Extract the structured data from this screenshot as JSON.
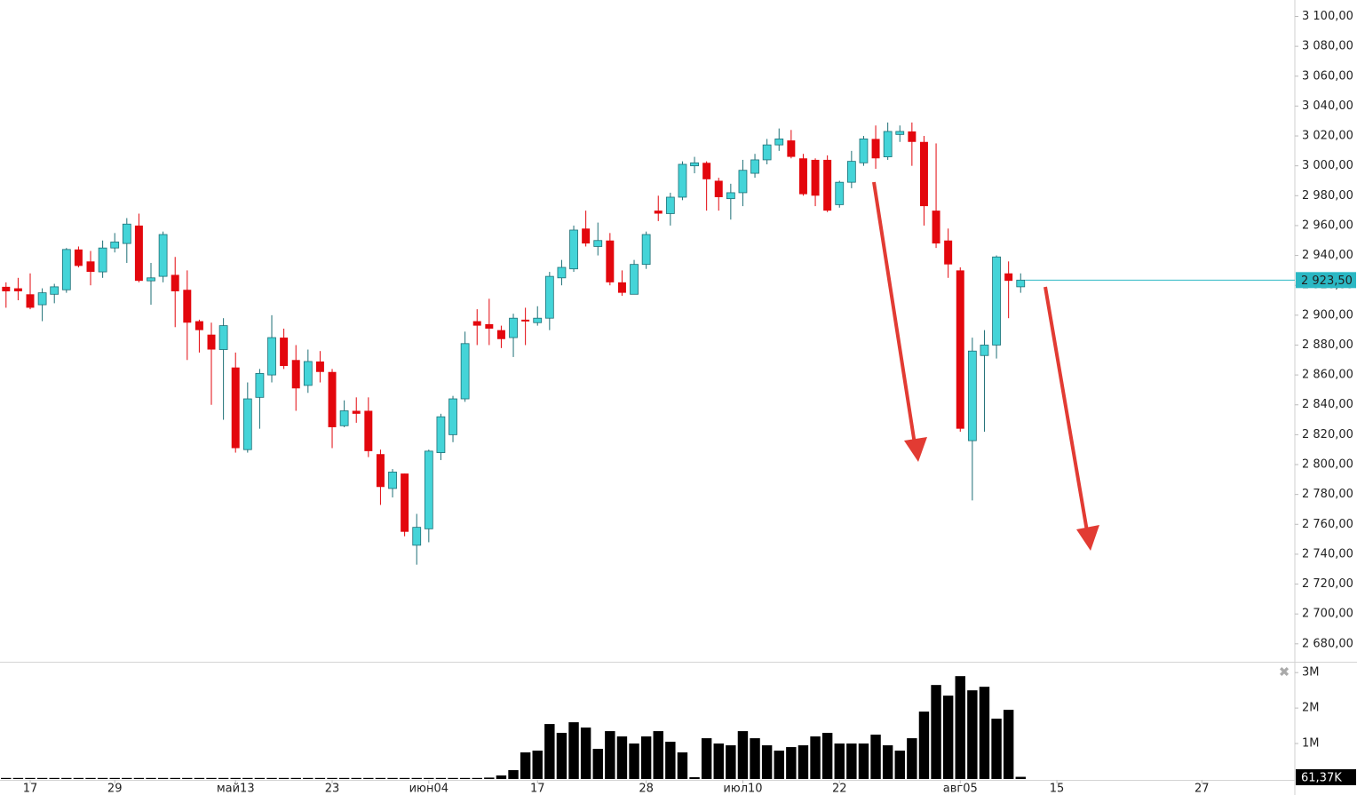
{
  "chart_data": [
    {
      "type": "candlestick",
      "up_color": "#44d4d8",
      "up_edge": "#1d6f76",
      "down_color": "#e3070d",
      "open": [
        2919,
        2918,
        2914,
        2907,
        2914,
        2917,
        2944,
        2936,
        2929,
        2945,
        2948,
        2960,
        2923,
        2926,
        2927,
        2917,
        2896,
        2887,
        2877,
        2865,
        2810,
        2845,
        2860,
        2885,
        2870,
        2853,
        2869,
        2862,
        2826,
        2836,
        2836,
        2807,
        2784,
        2794,
        2746,
        2757,
        2808,
        2820,
        2844,
        2896,
        2894,
        2890,
        2885,
        2897,
        2895,
        2898,
        2925,
        2931,
        2958,
        2946,
        2950,
        2922,
        2914,
        2934,
        2970,
        2968,
        2979,
        3000,
        3002,
        2990,
        2978,
        2982,
        2995,
        3004,
        3014,
        3017,
        3005,
        3004,
        3004,
        2974,
        2989,
        3002,
        3018,
        3006,
        3021,
        3023,
        3016,
        2970,
        2950,
        2930,
        2816,
        2873,
        2880,
        2928,
        2919
      ],
      "high": [
        2922,
        2925,
        2928,
        2918,
        2921,
        2945,
        2946,
        2943,
        2950,
        2955,
        2965,
        2968,
        2935,
        2956,
        2939,
        2930,
        2897,
        2895,
        2898,
        2875,
        2855,
        2864,
        2900,
        2891,
        2880,
        2877,
        2876,
        2864,
        2843,
        2845,
        2845,
        2810,
        2797,
        2794,
        2767,
        2810,
        2834,
        2846,
        2889,
        2904,
        2911,
        2893,
        2901,
        2905,
        2906,
        2929,
        2937,
        2960,
        2970,
        2962,
        2955,
        2930,
        2937,
        2956,
        2980,
        2982,
        3003,
        3006,
        3003,
        2992,
        2988,
        3004,
        3008,
        3018,
        3025,
        3024,
        3008,
        3005,
        3007,
        2990,
        3010,
        3020,
        3027,
        3029,
        3027,
        3029,
        3020,
        3015,
        2958,
        2932,
        2885,
        2890,
        2940,
        2936,
        2928
      ],
      "low": [
        2905,
        2910,
        2904,
        2896,
        2908,
        2915,
        2932,
        2920,
        2925,
        2942,
        2935,
        2922,
        2907,
        2922,
        2892,
        2870,
        2875,
        2840,
        2830,
        2808,
        2808,
        2824,
        2855,
        2864,
        2836,
        2848,
        2855,
        2811,
        2825,
        2828,
        2805,
        2773,
        2778,
        2752,
        2733,
        2748,
        2803,
        2815,
        2842,
        2880,
        2880,
        2878,
        2872,
        2880,
        2893,
        2890,
        2920,
        2929,
        2946,
        2940,
        2920,
        2913,
        2914,
        2931,
        2963,
        2960,
        2977,
        2995,
        2970,
        2970,
        2964,
        2973,
        2992,
        3001,
        3010,
        3005,
        2980,
        2973,
        2969,
        2972,
        2985,
        3000,
        2998,
        3004,
        3016,
        3000,
        2960,
        2945,
        2925,
        2822,
        2776,
        2822,
        2871,
        2898,
        2915
      ],
      "close": [
        2916,
        2916,
        2905,
        2915,
        2919,
        2944,
        2933,
        2929,
        2945,
        2949,
        2961,
        2923,
        2925,
        2954,
        2916,
        2895,
        2890,
        2877,
        2893,
        2811,
        2844,
        2861,
        2885,
        2866,
        2851,
        2869,
        2862,
        2825,
        2836,
        2834,
        2809,
        2785,
        2795,
        2755,
        2758,
        2809,
        2832,
        2844,
        2881,
        2893,
        2891,
        2884,
        2898,
        2896,
        2898,
        2926,
        2932,
        2957,
        2948,
        2950,
        2922,
        2915,
        2934,
        2954,
        2968,
        2979,
        3001,
        3002,
        2991,
        2979,
        2982,
        2997,
        3004,
        3014,
        3018,
        3006,
        2981,
        2980,
        2970,
        2989,
        3003,
        3018,
        3005,
        3023,
        3023,
        3016,
        2973,
        2948,
        2934,
        2824,
        2876,
        2880,
        2939,
        2923,
        2923.5
      ],
      "xlim": [
        -0.5,
        106.7
      ],
      "xticks": [
        {
          "value": 2,
          "label": "17"
        },
        {
          "value": 9,
          "label": "29"
        },
        {
          "value": 19,
          "label": "май13"
        },
        {
          "value": 27,
          "label": "23"
        },
        {
          "value": 35,
          "label": "июн04"
        },
        {
          "value": 44,
          "label": "17"
        },
        {
          "value": 53,
          "label": "28"
        },
        {
          "value": 61,
          "label": "июл10"
        },
        {
          "value": 69,
          "label": "22"
        },
        {
          "value": 79,
          "label": "авг05"
        },
        {
          "value": 87,
          "label": "15"
        },
        {
          "value": 99,
          "label": "27"
        }
      ],
      "ylim": [
        2668,
        3111
      ],
      "yticks": [
        {
          "value": 3100,
          "label": "3 100,00"
        },
        {
          "value": 3080,
          "label": "3 080,00"
        },
        {
          "value": 3060,
          "label": "3 060,00"
        },
        {
          "value": 3040,
          "label": "3 040,00"
        },
        {
          "value": 3020,
          "label": "3 020,00"
        },
        {
          "value": 3000,
          "label": "3 000,00"
        },
        {
          "value": 2980,
          "label": "2 980,00"
        },
        {
          "value": 2960,
          "label": "2 960,00"
        },
        {
          "value": 2940,
          "label": "2 940,00"
        },
        {
          "value": 2920,
          "label": "2 920,00"
        },
        {
          "value": 2900,
          "label": "2 900,00"
        },
        {
          "value": 2880,
          "label": "2 880,00"
        },
        {
          "value": 2860,
          "label": "2 860,00"
        },
        {
          "value": 2840,
          "label": "2 840,00"
        },
        {
          "value": 2820,
          "label": "2 820,00"
        },
        {
          "value": 2800,
          "label": "2 800,00"
        },
        {
          "value": 2780,
          "label": "2 780,00"
        },
        {
          "value": 2760,
          "label": "2 760,00"
        },
        {
          "value": 2740,
          "label": "2 740,00"
        },
        {
          "value": 2720,
          "label": "2 720,00"
        },
        {
          "value": 2700,
          "label": "2 700,00"
        },
        {
          "value": 2680,
          "label": "2 680,00"
        }
      ],
      "last_price": {
        "value": 2923.5,
        "label": "2 923,50"
      },
      "last_color": "#2bb8c4"
    },
    {
      "type": "bar",
      "color": "#000000",
      "values": [
        0.03,
        0.03,
        0.03,
        0.03,
        0.03,
        0.03,
        0.03,
        0.03,
        0.03,
        0.03,
        0.03,
        0.03,
        0.03,
        0.03,
        0.03,
        0.03,
        0.03,
        0.03,
        0.03,
        0.03,
        0.03,
        0.03,
        0.03,
        0.03,
        0.03,
        0.03,
        0.03,
        0.03,
        0.03,
        0.03,
        0.03,
        0.03,
        0.03,
        0.03,
        0.03,
        0.03,
        0.03,
        0.03,
        0.03,
        0.03,
        0.04,
        0.1,
        0.25,
        0.75,
        0.8,
        1.55,
        1.3,
        1.6,
        1.45,
        0.85,
        1.35,
        1.2,
        1.0,
        1.2,
        1.35,
        1.05,
        0.75,
        0.05,
        1.15,
        1.0,
        0.95,
        1.35,
        1.15,
        0.95,
        0.8,
        0.9,
        0.95,
        1.2,
        1.3,
        1.0,
        1.0,
        1.0,
        1.25,
        0.95,
        0.8,
        1.15,
        1.9,
        2.65,
        2.35,
        2.9,
        2.5,
        2.6,
        1.7,
        1.95,
        0.06137
      ],
      "ylim": [
        0,
        3.28
      ],
      "yticks": [
        {
          "value": 3,
          "label": "3M"
        },
        {
          "value": 2,
          "label": "2M"
        },
        {
          "value": 1,
          "label": "1M"
        }
      ],
      "last_volume": {
        "value": 0.06137,
        "label": "61,37K"
      }
    }
  ]
}
